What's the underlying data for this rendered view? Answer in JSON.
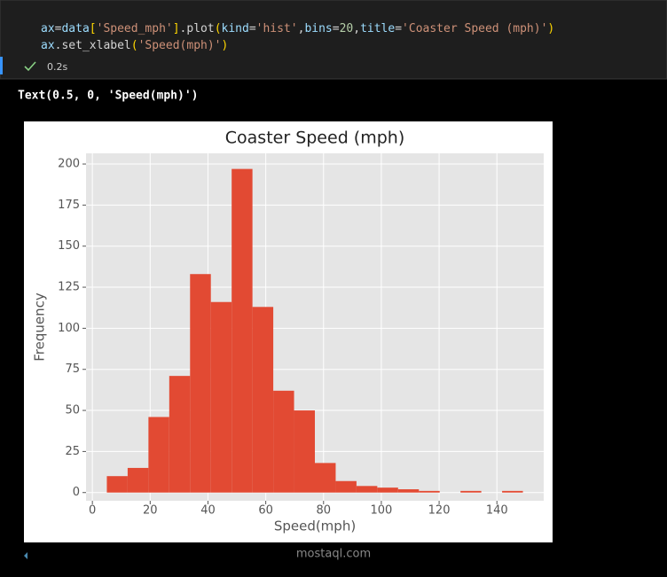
{
  "code": {
    "lines": [
      [
        {
          "text": "ax",
          "color": "#9cdcfe"
        },
        {
          "text": "=",
          "color": "#d4d4d4"
        },
        {
          "text": "data",
          "color": "#9cdcfe"
        },
        {
          "text": "[",
          "color": "#ffd700"
        },
        {
          "text": "'Speed_mph'",
          "color": "#ce9178"
        },
        {
          "text": "]",
          "color": "#ffd700"
        },
        {
          "text": ".plot",
          "color": "#d4d4d4"
        },
        {
          "text": "(",
          "color": "#ffd700"
        },
        {
          "text": "kind",
          "color": "#9cdcfe"
        },
        {
          "text": "=",
          "color": "#d4d4d4"
        },
        {
          "text": "'hist'",
          "color": "#ce9178"
        },
        {
          "text": ",",
          "color": "#d4d4d4"
        },
        {
          "text": "bins",
          "color": "#9cdcfe"
        },
        {
          "text": "=",
          "color": "#d4d4d4"
        },
        {
          "text": "20",
          "color": "#b5cea8"
        },
        {
          "text": ",",
          "color": "#d4d4d4"
        },
        {
          "text": "title",
          "color": "#9cdcfe"
        },
        {
          "text": "=",
          "color": "#d4d4d4"
        },
        {
          "text": "'Coaster Speed (mph)'",
          "color": "#ce9178"
        },
        {
          "text": ")",
          "color": "#ffd700"
        }
      ],
      [
        {
          "text": "ax",
          "color": "#9cdcfe"
        },
        {
          "text": ".set_xlabel",
          "color": "#d4d4d4"
        },
        {
          "text": "(",
          "color": "#ffd700"
        },
        {
          "text": "'Speed(mph)'",
          "color": "#ce9178"
        },
        {
          "text": ")",
          "color": "#ffd700"
        }
      ]
    ],
    "status": "0.2s"
  },
  "output": "Text(0.5, 0, 'Speed(mph)')",
  "chart_data": {
    "type": "histogram",
    "title": "Coaster Speed (mph)",
    "x_label": "Speed(mph)",
    "y_label": "Frequency",
    "bins": [
      5,
      12.2,
      19.4,
      26.6,
      33.8,
      41,
      48.2,
      55.4,
      62.6,
      69.8,
      77,
      84.2,
      91.4,
      98.6,
      105.8,
      113,
      120.2,
      127.4,
      134.6,
      141.8,
      149
    ],
    "values": [
      10,
      15,
      46,
      71,
      133,
      116,
      197,
      113,
      62,
      50,
      18,
      7,
      4,
      3,
      2,
      1,
      0,
      1,
      0,
      1
    ],
    "color": "#e24a33",
    "xlim": [
      -2.2,
      156.2
    ],
    "xticks": [
      0,
      20,
      40,
      60,
      80,
      100,
      120,
      140
    ],
    "ylim": [
      -5,
      206.5
    ],
    "yticks": [
      0,
      25,
      50,
      75,
      100,
      125,
      150,
      175,
      200
    ],
    "grid": true
  },
  "watermark": "mostaql.com"
}
